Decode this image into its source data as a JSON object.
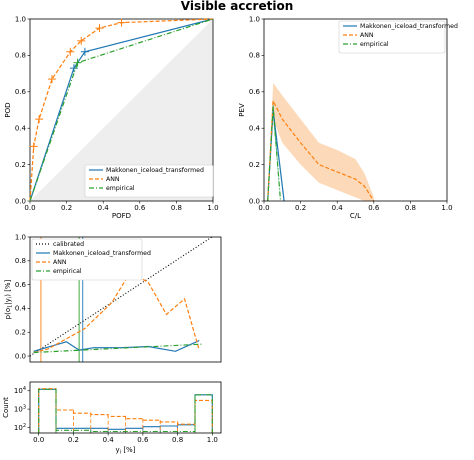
{
  "figure_title": "Visible accretion",
  "colors": {
    "makkonen": "#1f77b4",
    "ann": "#ff7f0e",
    "empirical": "#2ca02c",
    "calibrated": "#000000",
    "pev_band": "#fcd3ad",
    "pev_inner_band": "#2a9d8f",
    "roc_shade": "#eeeeee"
  },
  "chart_data": [
    {
      "id": "roc",
      "type": "line",
      "xlabel": "POFD",
      "ylabel": "POD",
      "xlim": [
        0,
        1
      ],
      "ylim": [
        0,
        1
      ],
      "xticks": [
        "0.0",
        "0.2",
        "0.4",
        "0.6",
        "0.8",
        "1.0"
      ],
      "yticks": [
        "0.0",
        "0.2",
        "0.4",
        "0.6",
        "0.8",
        "1.0"
      ],
      "grid": false,
      "shaded_no_skill_region": true,
      "legend": "lower-right",
      "series": [
        {
          "name": "Makkonen_iceload_transformed",
          "style": "solid",
          "color_key": "makkonen",
          "x": [
            0.0,
            0.24,
            0.3,
            1.0
          ],
          "y": [
            0.0,
            0.73,
            0.82,
            1.0
          ]
        },
        {
          "name": "ANN",
          "style": "dashed",
          "color_key": "ann",
          "x": [
            0.0,
            0.02,
            0.05,
            0.12,
            0.22,
            0.28,
            0.38,
            0.5,
            1.0
          ],
          "y": [
            0.0,
            0.3,
            0.45,
            0.67,
            0.82,
            0.88,
            0.95,
            0.98,
            1.0
          ]
        },
        {
          "name": "empirical",
          "style": "dashdot",
          "color_key": "empirical",
          "x": [
            0.0,
            0.26,
            1.0
          ],
          "y": [
            0.0,
            0.76,
            1.0
          ]
        }
      ]
    },
    {
      "id": "pev",
      "type": "line",
      "xlabel": "C/L",
      "ylabel": "PEV",
      "xlim": [
        0,
        1
      ],
      "ylim": [
        0,
        1
      ],
      "xticks": [
        "0.0",
        "0.2",
        "0.4",
        "0.6",
        "0.8",
        "1.0"
      ],
      "yticks": [
        "0.0",
        "0.2",
        "0.4",
        "0.6",
        "0.8",
        "1.0"
      ],
      "grid": false,
      "legend": "top-right",
      "series": [
        {
          "name": "Makkonen_iceload_transformed",
          "style": "solid",
          "color_key": "makkonen",
          "x": [
            0.02,
            0.05,
            0.08,
            0.11
          ],
          "y": [
            0.0,
            0.5,
            0.25,
            0.0
          ]
        },
        {
          "name": "ANN",
          "style": "dashed",
          "color_key": "ann",
          "x": [
            0.02,
            0.05,
            0.1,
            0.2,
            0.3,
            0.4,
            0.5,
            0.55,
            0.6
          ],
          "y": [
            0.0,
            0.55,
            0.45,
            0.32,
            0.2,
            0.16,
            0.12,
            0.08,
            0.0
          ],
          "band_upper": [
            0.0,
            0.65,
            0.58,
            0.45,
            0.32,
            0.28,
            0.23,
            0.15,
            0.02
          ],
          "band_lower": [
            0.0,
            0.45,
            0.32,
            0.2,
            0.1,
            0.06,
            0.02,
            0.0,
            0.0
          ]
        },
        {
          "name": "empirical",
          "style": "dashdot",
          "color_key": "empirical",
          "x": [
            0.02,
            0.05,
            0.09
          ],
          "y": [
            0.0,
            0.52,
            0.0
          ],
          "band_upper": [
            0.0,
            0.56,
            0.0
          ],
          "band_lower": [
            0.0,
            0.46,
            0.0
          ]
        }
      ]
    },
    {
      "id": "reliability",
      "type": "line",
      "xlabel": "",
      "ylabel": "p(o1|y1) [%]",
      "ylabel_parts": {
        "p": "p(o",
        "sub1": "1",
        "mid": "|y",
        "sub2": "i",
        "end": ")  [%]"
      },
      "xlim": [
        0,
        1.05
      ],
      "ylim": [
        0,
        1.0
      ],
      "xticks": [],
      "yticks": [
        "0.0",
        "0.2",
        "0.4",
        "0.6",
        "0.8",
        "1.0"
      ],
      "grid": false,
      "legend": "top-left",
      "series": [
        {
          "name": "calibrated",
          "style": "dotted",
          "color_key": "calibrated",
          "x": [
            0.0,
            1.0
          ],
          "y": [
            0.0,
            1.0
          ]
        },
        {
          "name": "Makkonen_iceload_transformed",
          "style": "solid",
          "color_key": "makkonen",
          "x": [
            0.02,
            0.2,
            0.27,
            0.35,
            0.5,
            0.65,
            0.8,
            0.93
          ],
          "y": [
            0.04,
            0.12,
            0.05,
            0.07,
            0.07,
            0.08,
            0.04,
            0.13
          ]
        },
        {
          "name": "ANN",
          "style": "dashed",
          "color_key": "ann",
          "x": [
            0.02,
            0.1,
            0.3,
            0.45,
            0.55,
            0.65,
            0.75,
            0.85,
            0.93
          ],
          "y": [
            0.03,
            0.06,
            0.23,
            0.45,
            0.7,
            0.62,
            0.35,
            0.48,
            0.05
          ]
        },
        {
          "name": "empirical",
          "style": "dashdot",
          "color_key": "empirical",
          "x": [
            0.02,
            0.95
          ],
          "y": [
            0.03,
            0.1
          ]
        }
      ],
      "vertical_lines": [
        {
          "x": 0.06,
          "color_key": "ann"
        },
        {
          "x": 0.27,
          "color_key": "empirical"
        },
        {
          "x": 0.29,
          "color_key": "makkonen"
        }
      ]
    },
    {
      "id": "counts",
      "type": "bar",
      "xlabel": "yi [%]",
      "xlabel_parts": {
        "y": "y",
        "sub": "i",
        "end": "  [%]"
      },
      "ylabel": "Count",
      "yscale": "log",
      "ylim": [
        50,
        30000
      ],
      "xlim": [
        -0.05,
        1.05
      ],
      "xticks": [
        "0.0",
        "0.2",
        "0.4",
        "0.6",
        "0.8",
        "1.0"
      ],
      "yticks": [
        "10",
        "10",
        "10"
      ],
      "ytick_exponents": [
        "2",
        "3",
        "4"
      ],
      "grid": false,
      "bin_edges": [
        0.0,
        0.1,
        0.2,
        0.3,
        0.4,
        0.5,
        0.6,
        0.7,
        0.8,
        0.9,
        1.0
      ],
      "series": [
        {
          "name": "Makkonen_iceload_transformed",
          "style": "solid",
          "color_key": "makkonen",
          "values": [
            12000,
            90,
            90,
            90,
            80,
            90,
            110,
            120,
            140,
            6000
          ]
        },
        {
          "name": "ANN",
          "style": "dashed",
          "color_key": "ann",
          "values": [
            13000,
            900,
            600,
            500,
            400,
            300,
            250,
            200,
            150,
            3000
          ]
        },
        {
          "name": "empirical",
          "style": "dashdot",
          "color_key": "empirical",
          "values": [
            12000,
            70,
            70,
            60,
            60,
            60,
            60,
            60,
            60,
            6000
          ]
        }
      ]
    }
  ]
}
